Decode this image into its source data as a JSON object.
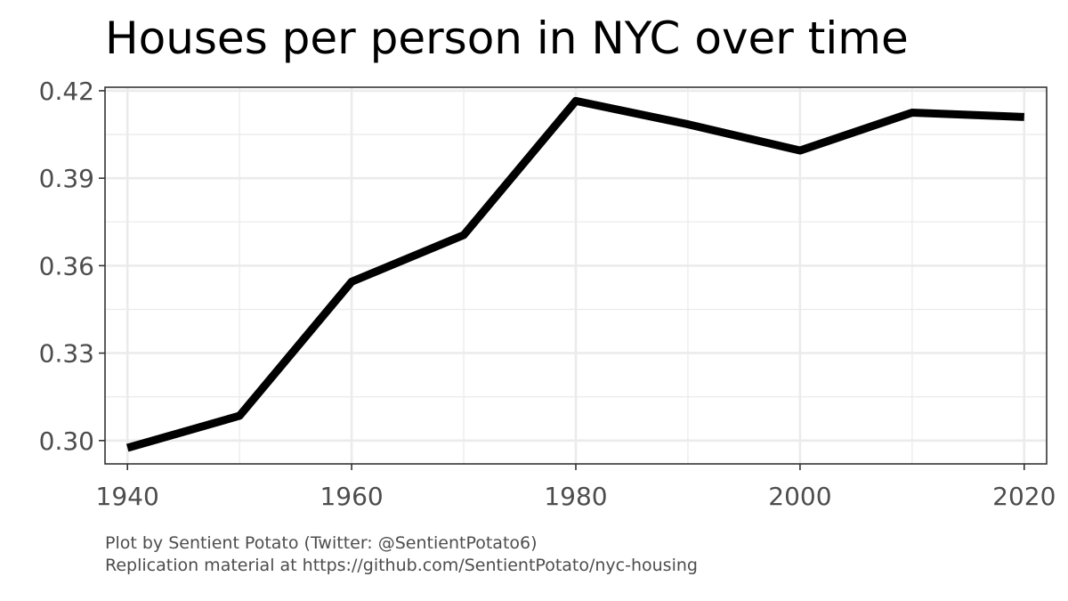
{
  "chart_data": {
    "type": "line",
    "title": "Houses per person in NYC over time",
    "xlabel": "",
    "ylabel": "",
    "x": [
      1940,
      1950,
      1960,
      1970,
      1980,
      1990,
      2000,
      2010,
      2020
    ],
    "series": [
      {
        "values": [
          0.2975,
          0.3085,
          0.3545,
          0.3705,
          0.4165,
          0.4085,
          0.3995,
          0.4125,
          0.411
        ]
      }
    ],
    "xlim": [
      1938,
      2022
    ],
    "ylim": [
      0.292,
      0.4212
    ],
    "x_ticks": [
      1940,
      1960,
      1980,
      2000,
      2020
    ],
    "x_tick_labels": [
      "1940",
      "1960",
      "1980",
      "2000",
      "2020"
    ],
    "y_ticks": [
      0.3,
      0.33,
      0.36,
      0.39,
      0.42
    ],
    "y_tick_labels": [
      "0.30",
      "0.33",
      "0.36",
      "0.39",
      "0.42"
    ],
    "x_minor_ticks": [
      1950,
      1970,
      1990,
      2010
    ],
    "y_minor_ticks": [
      0.315,
      0.345,
      0.375,
      0.405
    ],
    "grid": true,
    "line_color": "#000000",
    "grid_color": "#ebebeb",
    "panel_border_color": "#333333"
  },
  "caption": {
    "line1": "Plot by Sentient Potato (Twitter: @SentientPotato6)",
    "line2": "Replication material at https://github.com/SentientPotato/nyc-housing"
  }
}
